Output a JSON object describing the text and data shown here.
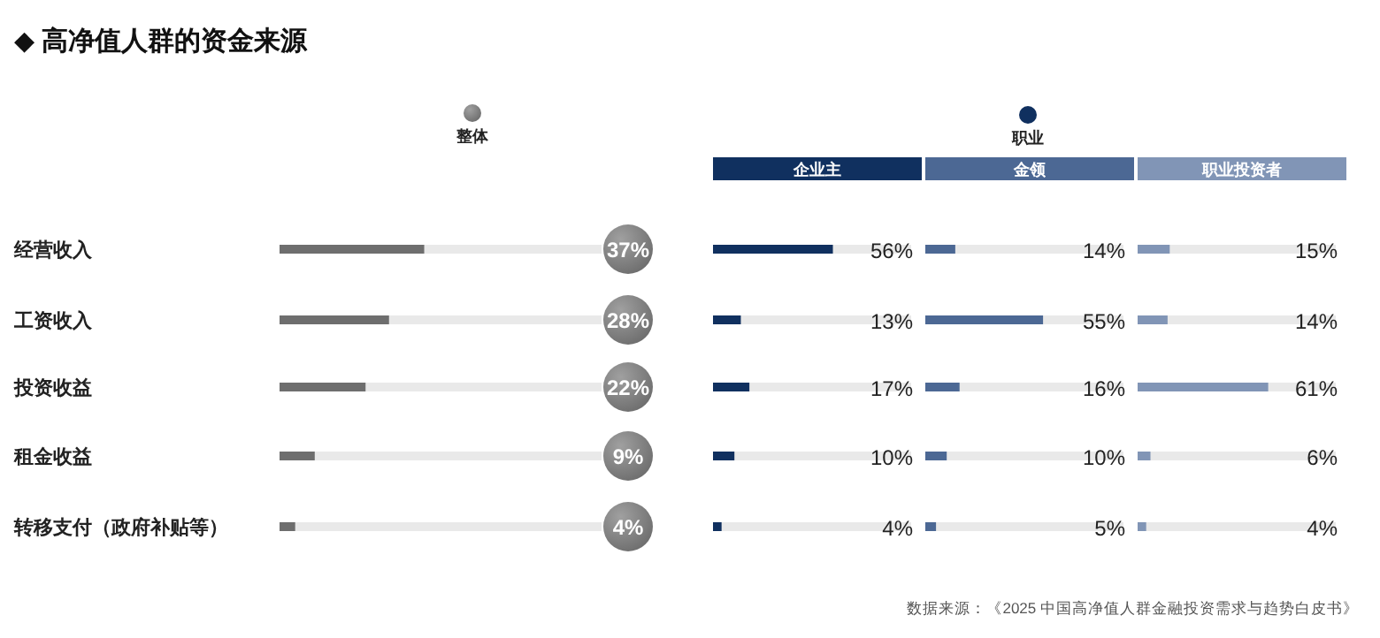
{
  "chart_data": [
    {
      "type": "bar",
      "orientation": "horizontal",
      "title": "◆ 高净值人群的资金来源",
      "legend": "top",
      "categories": [
        "经营收入",
        "工资收入",
        "投资收益",
        "租金收益",
        "转移支付（政府补贴等）"
      ],
      "series": [
        {
          "name": "整体",
          "color": "#6e6e6e",
          "values": [
            37,
            28,
            22,
            9,
            4
          ],
          "value_labels": [
            "37%",
            "28%",
            "22%",
            "9%",
            "4%"
          ]
        }
      ],
      "annotations": [
        "数据来源：《2025 中国高净值人群金融投资需求与趋势白皮书》"
      ]
    },
    {
      "type": "bar",
      "orientation": "horizontal",
      "legend": "top",
      "categories": [
        null,
        null,
        null,
        null,
        null
      ],
      "series": [
        {
          "name": "企业主",
          "color": "#10305f",
          "values": [
            56,
            13,
            17,
            10,
            4
          ],
          "value_labels": [
            "56%",
            "13%",
            "17%",
            "10%",
            "4%"
          ]
        }
      ]
    },
    {
      "type": "bar",
      "orientation": "horizontal",
      "legend": "top",
      "categories": [
        null,
        null,
        null,
        null,
        null
      ],
      "series": [
        {
          "name": "金领",
          "color": "#4c6894",
          "values": [
            14,
            55,
            16,
            10,
            5
          ],
          "value_labels": [
            "14%",
            "55%",
            "16%",
            "10%",
            "5%"
          ]
        }
      ],
      "annotations": [
        "职业"
      ]
    },
    {
      "type": "bar",
      "orientation": "horizontal",
      "legend": "top",
      "categories": [
        null,
        null,
        null,
        null,
        null
      ],
      "series": [
        {
          "name": "职业投资者",
          "color": "#8195b6",
          "values": [
            15,
            14,
            61,
            6,
            4
          ],
          "value_labels": [
            "15%",
            "14%",
            "61%",
            "6%",
            "4%"
          ]
        }
      ]
    }
  ]
}
